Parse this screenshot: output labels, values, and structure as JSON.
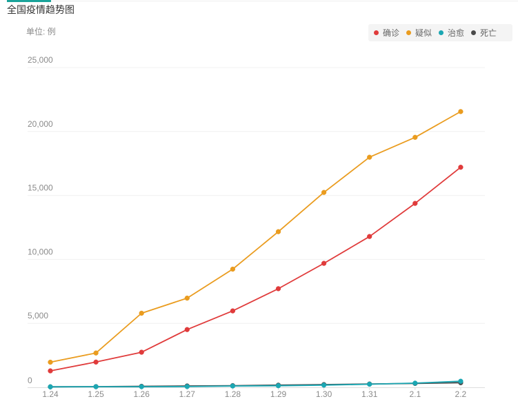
{
  "page": {
    "title": "全国疫情趋势图",
    "unit": "单位: 例"
  },
  "colors": {
    "confirmed": "#e03b3b",
    "suspected": "#ea9c1f",
    "cured": "#1ba7b3",
    "dead": "#4a4a4a",
    "accent": "#1aa39a"
  },
  "chart_data": {
    "type": "line",
    "title": "全国疫情趋势图",
    "ylabel": "单位: 例",
    "xlabel": "",
    "categories": [
      "1.24",
      "1.25",
      "1.26",
      "1.27",
      "1.28",
      "1.29",
      "1.30",
      "1.31",
      "2.1",
      "2.2"
    ],
    "ylim": [
      0,
      25000
    ],
    "yticks": [
      0,
      5000,
      10000,
      15000,
      20000,
      25000
    ],
    "ytick_labels": [
      "0",
      "5,000",
      "10,000",
      "15,000",
      "20,000",
      "25,000"
    ],
    "grid": true,
    "legend_position": "top-right",
    "series": [
      {
        "name": "确诊",
        "key": "confirmed",
        "values": [
          1287,
          1975,
          2744,
          4515,
          5974,
          7711,
          9692,
          11791,
          14380,
          17205
        ]
      },
      {
        "name": "疑似",
        "key": "suspected",
        "values": [
          1965,
          2684,
          5794,
          6973,
          9239,
          12167,
          15238,
          17988,
          19544,
          21558
        ]
      },
      {
        "name": "治愈",
        "key": "cured",
        "values": [
          38,
          49,
          51,
          60,
          103,
          124,
          171,
          243,
          328,
          475
        ]
      },
      {
        "name": "死亡",
        "key": "dead",
        "values": [
          41,
          56,
          80,
          106,
          132,
          170,
          213,
          259,
          304,
          361
        ]
      }
    ]
  }
}
